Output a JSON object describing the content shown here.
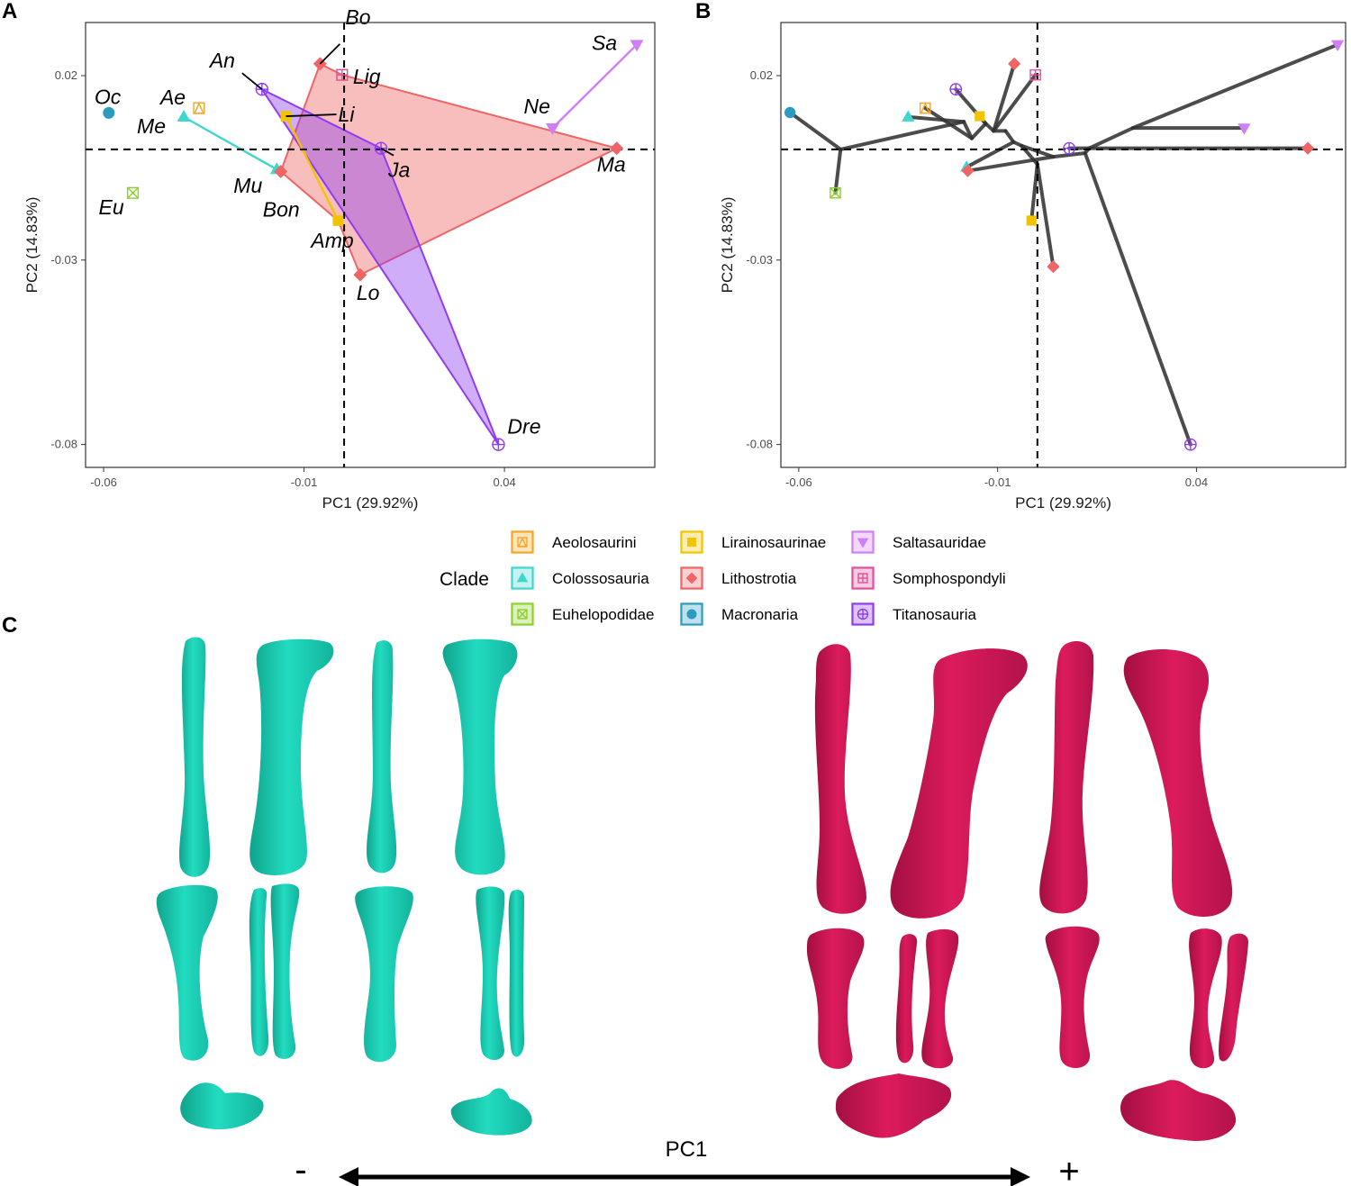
{
  "figure": {
    "panel_letters": [
      "A",
      "B",
      "C"
    ],
    "colors": {
      "Aeolosaurini": "#f5a623",
      "Colossosauria": "#3fd6d0",
      "Euhelopodidae": "#8bd12c",
      "Lirainosaurinae": "#f2c400",
      "Lithostrotia": "#ef6464",
      "Macronaria": "#2a9cc0",
      "Saltasauridae": "#d07ef5",
      "Somphospondyli": "#e0509a",
      "Titanosauria": "#8f3cf0",
      "bone_negative": "#1fd6b8",
      "bone_positive": "#d51a57",
      "hull_lithostrotia": "#f4a6a6",
      "hull_titanosauria": "#b88cf0",
      "tree_edges": "#333333"
    },
    "legend": {
      "title": "Clade",
      "items": [
        {
          "label": "Aeolosaurini",
          "clade": "Aeolosaurini",
          "icon": "triangle-in-square-icon"
        },
        {
          "label": "Colossosauria",
          "clade": "Colossosauria",
          "icon": "filled-triangle-icon"
        },
        {
          "label": "Euhelopodidae",
          "clade": "Euhelopodidae",
          "icon": "x-in-square-icon"
        },
        {
          "label": "Lirainosaurinae",
          "clade": "Lirainosaurinae",
          "icon": "filled-square-icon"
        },
        {
          "label": "Lithostrotia",
          "clade": "Lithostrotia",
          "icon": "filled-diamond-icon"
        },
        {
          "label": "Macronaria",
          "clade": "Macronaria",
          "icon": "filled-circle-icon"
        },
        {
          "label": "Saltasauridae",
          "clade": "Saltasauridae",
          "icon": "inverted-triangle-icon"
        },
        {
          "label": "Somphospondyli",
          "clade": "Somphospondyli",
          "icon": "plus-in-square-icon"
        },
        {
          "label": "Titanosauria",
          "clade": "Titanosauria",
          "icon": "plus-in-circle-icon"
        }
      ]
    },
    "panel_c": {
      "axis_label": "PC1",
      "minus": "-",
      "plus": "+",
      "views": [
        "bone-negative-pc1-extreme",
        "bone-positive-pc1-extreme"
      ]
    }
  },
  "chart_data": [
    {
      "panel": "A",
      "type": "scatter",
      "xlabel": "PC1 (29.92%)",
      "ylabel": "PC2 (14.83%)",
      "xlim": [
        -0.0645,
        0.0775
      ],
      "ylim": [
        -0.0862,
        0.0344
      ],
      "xticks": [
        -0.06,
        -0.01,
        0.04
      ],
      "xtick_labels": [
        "-0.06",
        "-0.01",
        "0.04"
      ],
      "yticks": [
        0.02,
        -0.03,
        -0.08
      ],
      "ytick_labels": [
        "0.02",
        "-0.03",
        "-0.08"
      ],
      "reference_lines": {
        "x": 0,
        "y": 0
      },
      "grid": false,
      "points": [
        {
          "id": "Oc",
          "label": "Oc",
          "clade": "Macronaria",
          "x": -0.0587,
          "y": 0.0099
        },
        {
          "id": "Eu",
          "label": "Eu",
          "clade": "Euhelopodidae",
          "x": -0.0527,
          "y": -0.0118
        },
        {
          "id": "Me",
          "label": "Me",
          "clade": "Colossosauria",
          "x": -0.04,
          "y": 0.0088
        },
        {
          "id": "Ae",
          "label": "Ae",
          "clade": "Aeolosaurini",
          "x": -0.0362,
          "y": 0.0112
        },
        {
          "id": "An",
          "label": "An",
          "clade": "Titanosauria",
          "x": -0.0205,
          "y": 0.0163
        },
        {
          "id": "Mu",
          "label": "Mu",
          "clade": "Colossosauria",
          "x": -0.0168,
          "y": -0.0054
        },
        {
          "id": "Bon",
          "label": "Bon",
          "clade": "Lithostrotia",
          "x": -0.0158,
          "y": -0.006
        },
        {
          "id": "Li",
          "label": "Li",
          "clade": "Lirainosaurinae",
          "x": -0.0145,
          "y": 0.009
        },
        {
          "id": "Bo",
          "label": "Bo",
          "clade": "Lithostrotia",
          "x": -0.006,
          "y": 0.0232
        },
        {
          "id": "Lig",
          "label": "Lig",
          "clade": "Somphospondyli",
          "x": -0.0005,
          "y": 0.0202
        },
        {
          "id": "Amp",
          "label": "Amp",
          "clade": "Lirainosaurinae",
          "x": -0.0015,
          "y": -0.0193
        },
        {
          "id": "Lo",
          "label": "Lo",
          "clade": "Lithostrotia",
          "x": 0.004,
          "y": -0.034
        },
        {
          "id": "Ja",
          "label": "Ja",
          "clade": "Titanosauria",
          "x": 0.0092,
          "y": 0.0003
        },
        {
          "id": "Dre",
          "label": "Dre",
          "clade": "Titanosauria",
          "x": 0.0385,
          "y": -0.08
        },
        {
          "id": "Ne",
          "label": "Ne",
          "clade": "Saltasauridae",
          "x": 0.052,
          "y": 0.0058
        },
        {
          "id": "Ma",
          "label": "Ma",
          "clade": "Lithostrotia",
          "x": 0.068,
          "y": 0.0003
        },
        {
          "id": "Sa",
          "label": "Sa",
          "clade": "Saltasauridae",
          "x": 0.073,
          "y": 0.0284
        }
      ],
      "hulls": [
        {
          "clade": "Lithostrotia",
          "vertices": [
            "Bo",
            "Lig",
            "Ma",
            "Lo",
            "Amp",
            "Bon"
          ]
        },
        {
          "clade": "Titanosauria",
          "vertices": [
            "An",
            "Ja",
            "Dre"
          ]
        }
      ],
      "segments": [
        {
          "clade": "Colossosauria",
          "from": "Me",
          "to": "Mu"
        },
        {
          "clade": "Saltasauridae",
          "from": "Ne",
          "to": "Sa"
        },
        {
          "clade": "Lirainosaurinae",
          "from": "Li",
          "to": "Amp"
        }
      ]
    },
    {
      "panel": "B",
      "type": "scatter",
      "subtype": "phylomorphospace",
      "xlabel": "PC1 (29.92%)",
      "ylabel": "PC2 (14.83%)",
      "xlim": [
        -0.0645,
        0.0775
      ],
      "ylim": [
        -0.0862,
        0.0344
      ],
      "xticks": [
        -0.06,
        -0.01,
        0.04
      ],
      "xtick_labels": [
        "-0.06",
        "-0.01",
        "0.04"
      ],
      "yticks": [
        0.02,
        -0.03,
        -0.08
      ],
      "ytick_labels": [
        "0.02",
        "-0.03",
        "-0.08"
      ],
      "reference_lines": {
        "x": 0,
        "y": 0
      },
      "grid": false,
      "tips": [
        {
          "id": "Oc",
          "clade": "Macronaria",
          "x": -0.0622,
          "y": 0.01
        },
        {
          "id": "Eu",
          "clade": "Euhelopodidae",
          "x": -0.0508,
          "y": -0.0118
        },
        {
          "id": "Me",
          "clade": "Colossosauria",
          "x": -0.0325,
          "y": 0.0088
        },
        {
          "id": "Ae",
          "clade": "Aeolosaurini",
          "x": -0.0282,
          "y": 0.0112
        },
        {
          "id": "An",
          "clade": "Titanosauria",
          "x": -0.0205,
          "y": 0.0163
        },
        {
          "id": "Mu",
          "clade": "Colossosauria",
          "x": -0.0178,
          "y": -0.0048
        },
        {
          "id": "Bon",
          "clade": "Lithostrotia",
          "x": -0.0175,
          "y": -0.0058
        },
        {
          "id": "Li",
          "clade": "Lirainosaurinae",
          "x": -0.0145,
          "y": 0.009
        },
        {
          "id": "Bo",
          "clade": "Lithostrotia",
          "x": -0.0058,
          "y": 0.0232
        },
        {
          "id": "Lig",
          "clade": "Somphospondyli",
          "x": -0.0005,
          "y": 0.0202
        },
        {
          "id": "Amp",
          "clade": "Lirainosaurinae",
          "x": -0.0015,
          "y": -0.0193
        },
        {
          "id": "Lo",
          "clade": "Lithostrotia",
          "x": 0.004,
          "y": -0.0318
        },
        {
          "id": "Ja",
          "clade": "Titanosauria",
          "x": 0.008,
          "y": 0.0003
        },
        {
          "id": "Dre",
          "clade": "Titanosauria",
          "x": 0.0385,
          "y": -0.08
        },
        {
          "id": "Ne",
          "clade": "Saltasauridae",
          "x": 0.052,
          "y": 0.0058
        },
        {
          "id": "Ma",
          "clade": "Lithostrotia",
          "x": 0.068,
          "y": 0.0003
        },
        {
          "id": "Sa",
          "clade": "Saltasauridae",
          "x": 0.0755,
          "y": 0.0284
        }
      ],
      "nodes": [
        {
          "id": "n1",
          "x": -0.0495,
          "y": 0.0
        },
        {
          "id": "n2",
          "x": -0.0185,
          "y": 0.0075
        },
        {
          "id": "n3",
          "x": -0.0165,
          "y": 0.003
        },
        {
          "id": "n4",
          "x": -0.013,
          "y": 0.007
        },
        {
          "id": "n5",
          "x": -0.011,
          "y": 0.005
        },
        {
          "id": "n6",
          "x": -0.008,
          "y": 0.005
        },
        {
          "id": "n7",
          "x": -0.006,
          "y": 0.002
        },
        {
          "id": "n8",
          "x": -0.004,
          "y": 0.001
        },
        {
          "id": "n9",
          "x": 0.0,
          "y": -0.004
        },
        {
          "id": "n10",
          "x": 0.004,
          "y": -0.002
        },
        {
          "id": "n11",
          "x": 0.012,
          "y": -0.001
        },
        {
          "id": "n12",
          "x": 0.013,
          "y": 0.0003
        },
        {
          "id": "n13",
          "x": 0.024,
          "y": 0.0058
        }
      ],
      "edges": [
        [
          "Oc",
          "n1"
        ],
        [
          "n1",
          "Eu"
        ],
        [
          "n1",
          "n2"
        ],
        [
          "n2",
          "Me"
        ],
        [
          "n2",
          "n3"
        ],
        [
          "n3",
          "Ae"
        ],
        [
          "n3",
          "n4"
        ],
        [
          "n4",
          "An"
        ],
        [
          "n4",
          "Li"
        ],
        [
          "n4",
          "n5"
        ],
        [
          "n5",
          "Bo"
        ],
        [
          "n5",
          "Lig"
        ],
        [
          "n5",
          "n6"
        ],
        [
          "n6",
          "n7"
        ],
        [
          "n7",
          "Mu"
        ],
        [
          "n7",
          "n8"
        ],
        [
          "n8",
          "n9"
        ],
        [
          "n9",
          "Amp"
        ],
        [
          "n9",
          "Lo"
        ],
        [
          "n8",
          "n10"
        ],
        [
          "n10",
          "Bon"
        ],
        [
          "n10",
          "n11"
        ],
        [
          "n11",
          "Dre"
        ],
        [
          "n11",
          "n12"
        ],
        [
          "n12",
          "Ja"
        ],
        [
          "n12",
          "Ma"
        ],
        [
          "n12",
          "n13"
        ],
        [
          "n13",
          "Ne"
        ],
        [
          "n13",
          "Sa"
        ]
      ]
    }
  ]
}
